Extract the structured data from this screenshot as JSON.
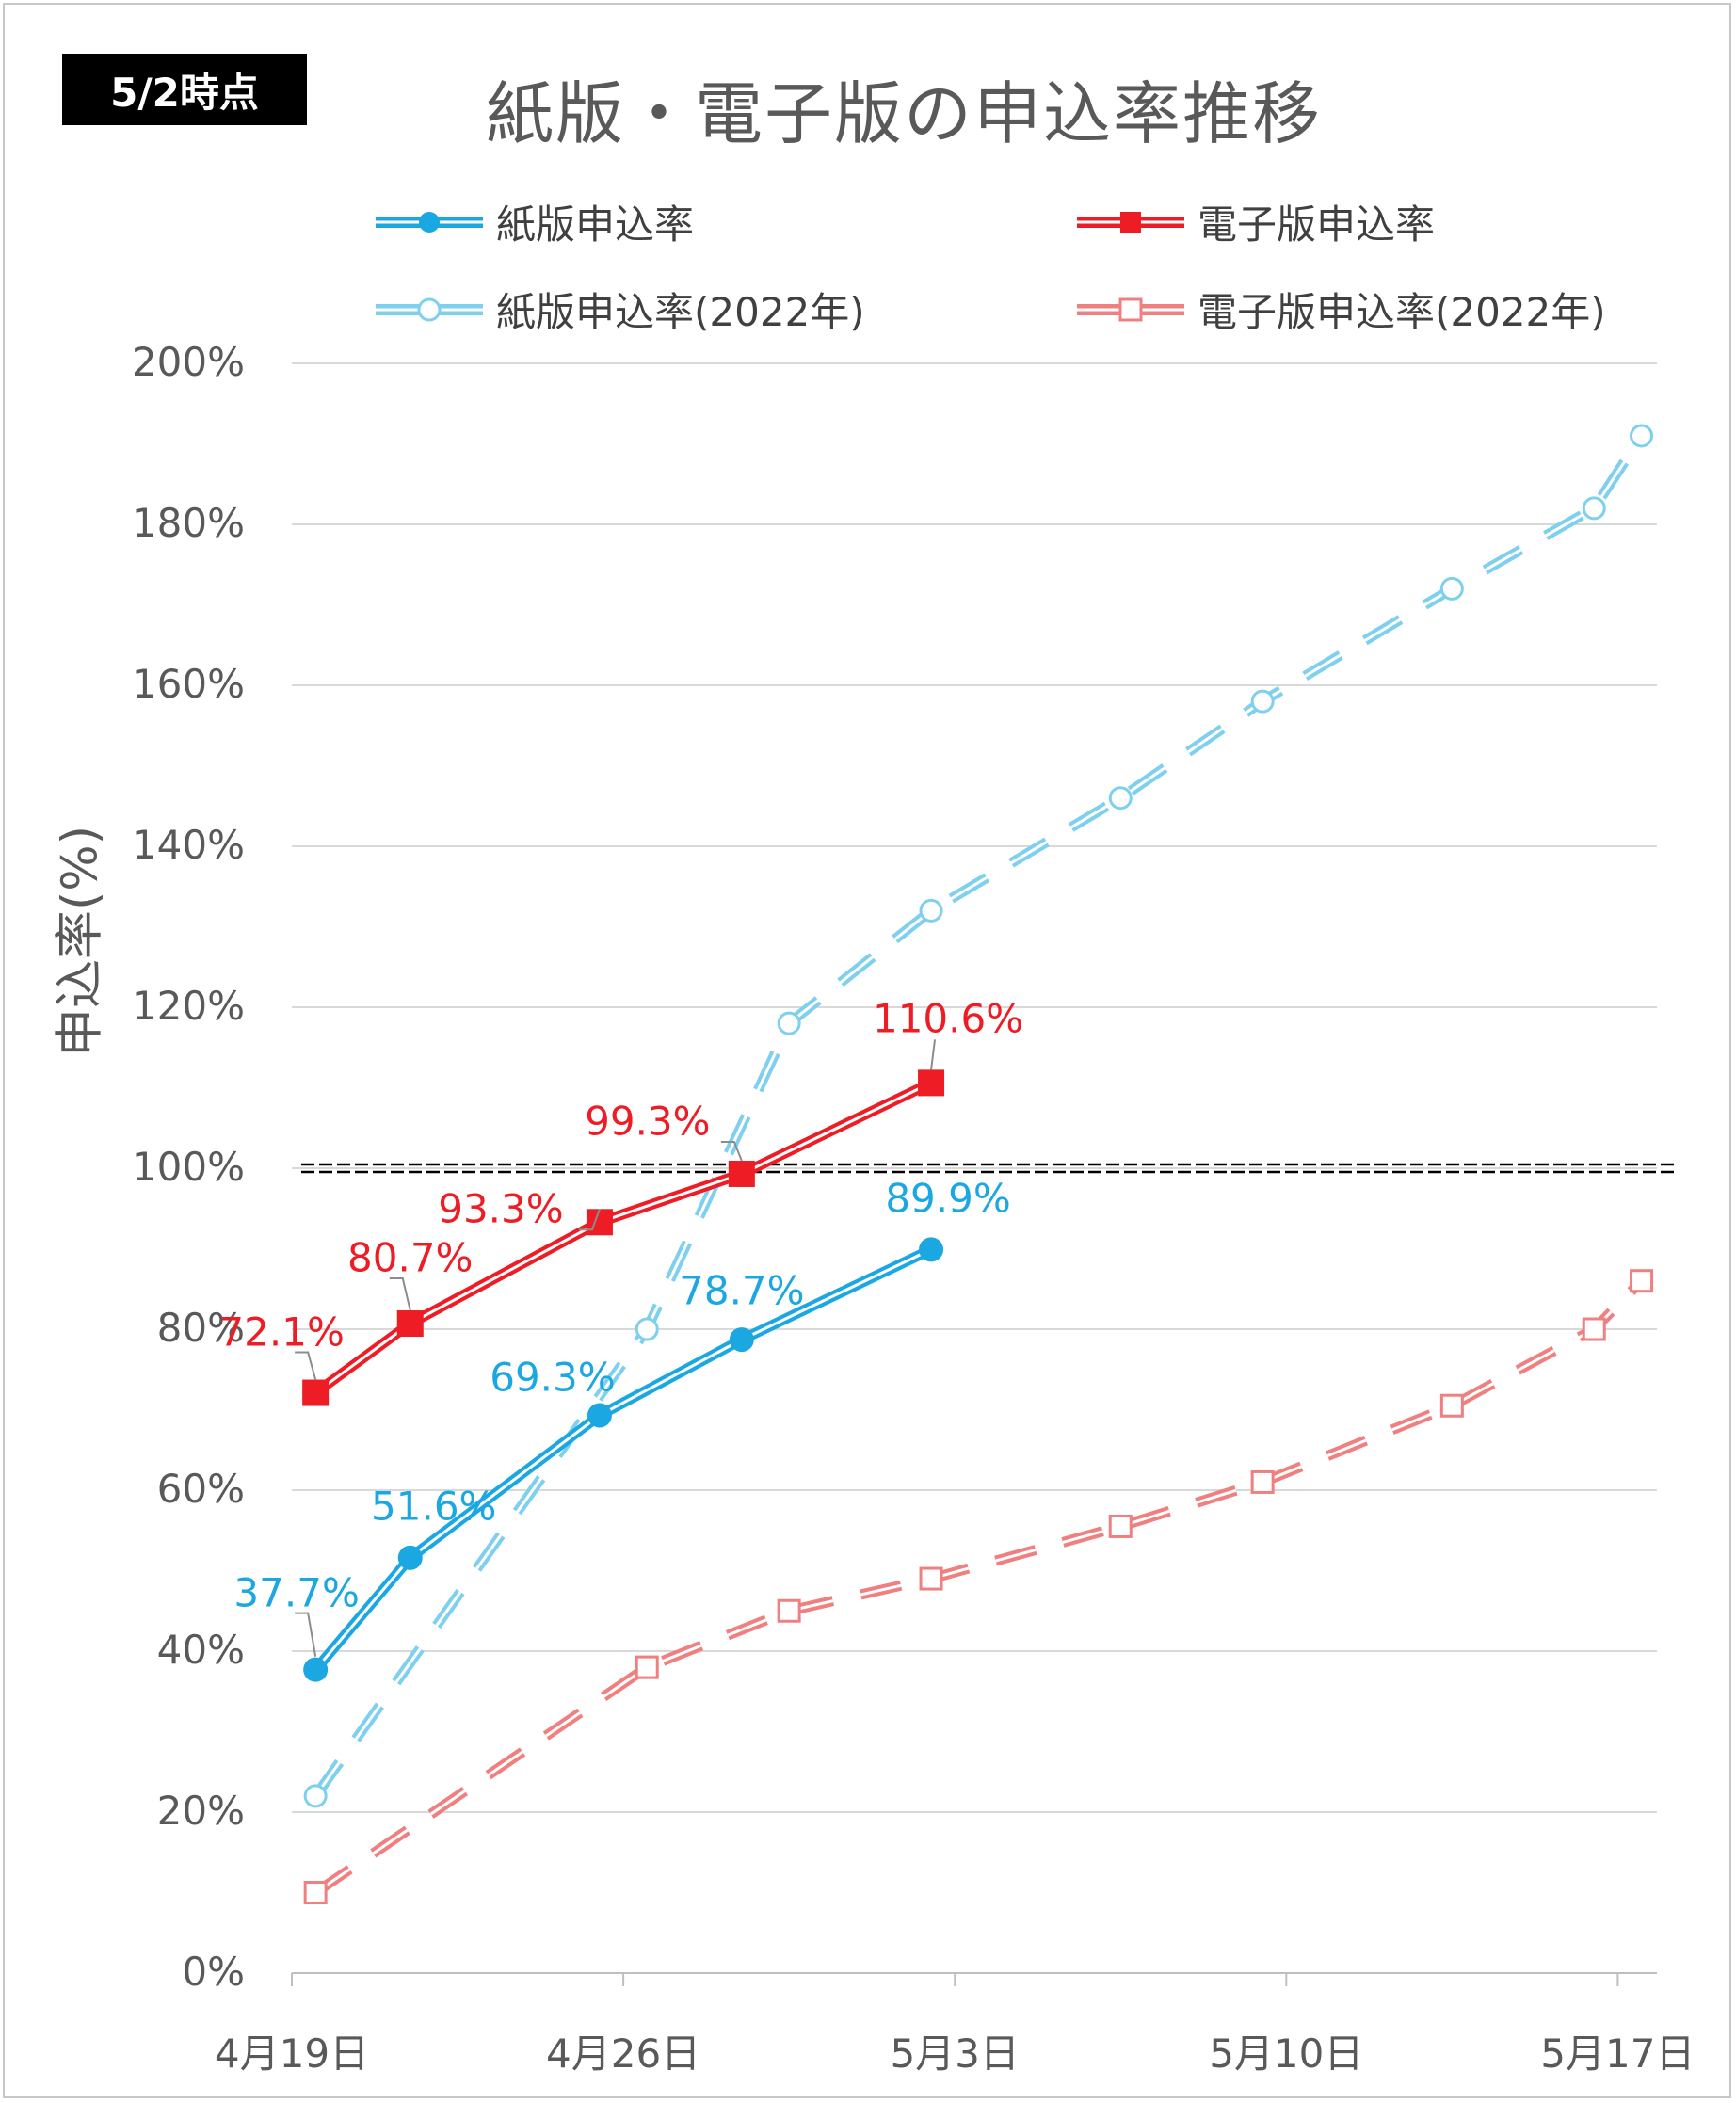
{
  "badge": "5/2時点",
  "chart_data": {
    "type": "line",
    "title": "紙版・電子版の申込率推移",
    "ylabel": "申込率(%)",
    "xlabel": "",
    "ylim": [
      0,
      200
    ],
    "y_ticks": [
      "0%",
      "20%",
      "40%",
      "60%",
      "80%",
      "100%",
      "120%",
      "140%",
      "160%",
      "180%",
      "200%"
    ],
    "x_ticks": [
      {
        "label": "4月19日",
        "day": 0
      },
      {
        "label": "4月26日",
        "day": 7
      },
      {
        "label": "5月3日",
        "day": 14
      },
      {
        "label": "5月10日",
        "day": 21
      },
      {
        "label": "5月17日",
        "day": 28
      }
    ],
    "reference_line": {
      "value": 100,
      "style": "double-dashed"
    },
    "series": [
      {
        "name": "紙版申込率",
        "color": "#1BA7E1",
        "style": "solid-double",
        "marker": "circle-filled",
        "x": [
          0.5,
          2.5,
          6.5,
          9.5,
          13.5
        ],
        "values": [
          37.7,
          51.6,
          69.3,
          78.7,
          89.9
        ],
        "labels": [
          "37.7%",
          "51.6%",
          "69.3%",
          "78.7%",
          "89.9%"
        ]
      },
      {
        "name": "電子版申込率",
        "color": "#EE1C25",
        "style": "solid-double",
        "marker": "square-filled",
        "x": [
          0.5,
          2.5,
          6.5,
          9.5,
          13.5
        ],
        "values": [
          72.1,
          80.7,
          93.3,
          99.3,
          110.6
        ],
        "labels": [
          "72.1%",
          "80.7%",
          "93.3%",
          "99.3%",
          "110.6%"
        ]
      },
      {
        "name": "紙版申込率(2022年)",
        "color": "#7FD0EE",
        "style": "dashed-double",
        "marker": "circle-open",
        "x": [
          0.5,
          7.5,
          10.5,
          13.5,
          17.5,
          20.5,
          24.5,
          27.5,
          28.5
        ],
        "values": [
          22,
          80,
          118,
          132,
          146,
          158,
          172,
          182,
          191
        ]
      },
      {
        "name": "電子版申込率(2022年)",
        "color": "#F08080",
        "style": "dashed-double",
        "marker": "square-open",
        "x": [
          0.5,
          7.5,
          10.5,
          13.5,
          17.5,
          20.5,
          24.5,
          27.5,
          28.5
        ],
        "values": [
          10,
          38,
          45,
          49,
          55.5,
          61,
          70.5,
          80,
          86
        ]
      }
    ]
  }
}
